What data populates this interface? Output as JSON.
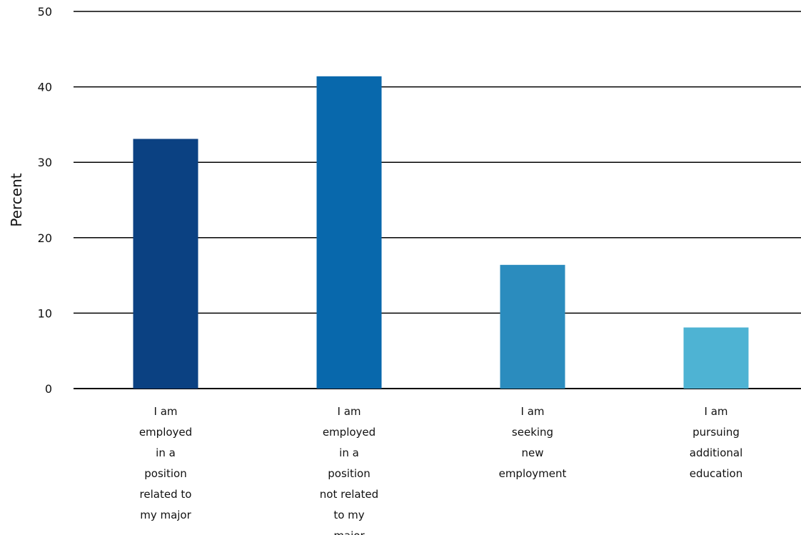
{
  "chart_data": {
    "type": "bar",
    "title": "",
    "xlabel": "",
    "ylabel": "Percent",
    "ylim": [
      0,
      50
    ],
    "yticks": [
      0,
      10,
      20,
      30,
      40,
      50
    ],
    "grid": true,
    "categories": [
      "I am employed in a position related to my major",
      "I am employed in a position not related to my major",
      "I am seeking new employment",
      "I am pursuing additional education"
    ],
    "category_lines": [
      [
        "I am",
        "employed",
        "in a",
        "position",
        "related to",
        "my major"
      ],
      [
        "I am",
        "employed",
        "in a",
        "position",
        "not related",
        "to my",
        "major"
      ],
      [
        "I am",
        "seeking",
        "new",
        "employment"
      ],
      [
        "I am",
        "pursuing",
        "additional",
        "education"
      ]
    ],
    "values": [
      33.1,
      41.4,
      16.4,
      8.1
    ],
    "colors": [
      "#0b4182",
      "#0868ac",
      "#2b8cbe",
      "#4eb3d3"
    ]
  }
}
